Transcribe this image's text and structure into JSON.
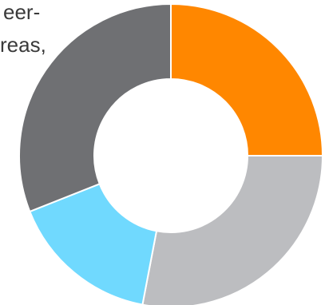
{
  "text_fragments": [
    "eer-",
    "reas,"
  ],
  "chart_data": {
    "type": "pie",
    "variant": "donut",
    "title": "",
    "legend": "none",
    "slices": [
      {
        "value": 25,
        "color": "#ff8700"
      },
      {
        "value": 28,
        "color": "#bcbdc0"
      },
      {
        "value": 16,
        "color": "#70d9fe"
      },
      {
        "value": 31,
        "color": "#6f7073"
      }
    ]
  }
}
